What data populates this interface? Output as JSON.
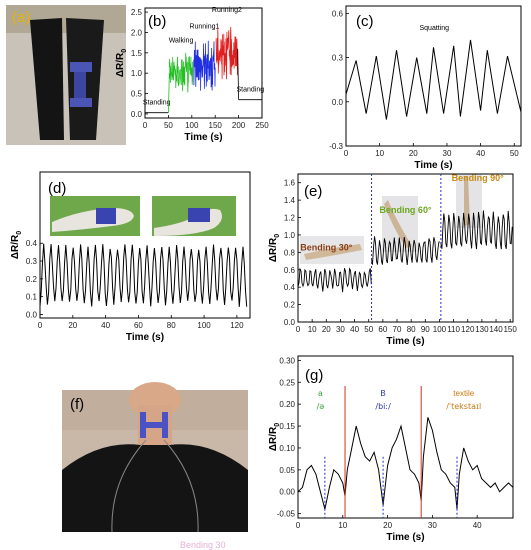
{
  "panel_labels": {
    "a": "(a)",
    "b": "(b)",
    "c": "(c)",
    "d": "(d)",
    "e": "(e)",
    "f": "(f)",
    "g": "(g)"
  },
  "axis_labels": {
    "x": "Time (s)",
    "y": "ΔR/R",
    "y_sub": "0"
  },
  "photo_caption": "Bending 30",
  "chart_data": [
    {
      "id": "b",
      "type": "line",
      "xlabel": "Time (s)",
      "ylabel": "ΔR/R0",
      "xlim": [
        0,
        250
      ],
      "ylim": [
        -0.1,
        2.6
      ],
      "xticks": [
        "0",
        "50",
        "100",
        "150",
        "200",
        "250"
      ],
      "yticks": [
        "0.0",
        "0.5",
        "1.0",
        "1.5",
        "2.0",
        "2.5"
      ],
      "segments": [
        {
          "name": "Standing",
          "x": [
            0,
            50
          ],
          "color": "#000000",
          "base": 0.03,
          "amp": 0.0
        },
        {
          "name": "Walking",
          "x": [
            52,
            102
          ],
          "color": "#20c020",
          "base": 1.0,
          "amp": 0.5
        },
        {
          "name": "Running1",
          "x": [
            104,
            150
          ],
          "color": "#2030e0",
          "base": 1.2,
          "amp": 0.65
        },
        {
          "name": "Running2",
          "x": [
            152,
            198
          ],
          "color": "#e02020",
          "base": 1.55,
          "amp": 0.7
        },
        {
          "name": "Standing",
          "x": [
            200,
            250
          ],
          "color": "#000000",
          "base": 0.35,
          "amp": 0.0
        }
      ]
    },
    {
      "id": "c",
      "type": "line",
      "xlabel": "Time (s)",
      "ylabel": "",
      "title": "Squatting",
      "xlim": [
        0,
        52
      ],
      "ylim": [
        -0.3,
        0.65
      ],
      "xticks": [
        "0",
        "10",
        "20",
        "30",
        "40",
        "50"
      ],
      "yticks": [
        "-0.3",
        "0.0",
        "0.3",
        "0.6"
      ],
      "peaks": [
        [
          3,
          0.28
        ],
        [
          9,
          0.31
        ],
        [
          15,
          0.35
        ],
        [
          21,
          0.3
        ],
        [
          26,
          0.37
        ],
        [
          32,
          0.38
        ],
        [
          37,
          0.42
        ],
        [
          42,
          0.35
        ],
        [
          48,
          0.31
        ]
      ],
      "troughs": [
        [
          0,
          0.05
        ],
        [
          6,
          -0.08
        ],
        [
          12,
          -0.12
        ],
        [
          18,
          -0.1
        ],
        [
          24,
          -0.08
        ],
        [
          29,
          -0.08
        ],
        [
          34,
          -0.1
        ],
        [
          40,
          -0.06
        ],
        [
          45,
          -0.08
        ],
        [
          52,
          -0.07
        ]
      ]
    },
    {
      "id": "d",
      "type": "line",
      "xlabel": "Time (s)",
      "ylabel": "ΔR/R0",
      "xlim": [
        0,
        128
      ],
      "ylim": [
        -0.02,
        0.8
      ],
      "xticks": [
        "0",
        "20",
        "40",
        "60",
        "80",
        "100",
        "120"
      ],
      "yticks": [
        "0.0",
        "0.1",
        "0.2",
        "0.3",
        "0.4"
      ],
      "period": 4.5,
      "low": 0.06,
      "high": 0.38
    },
    {
      "id": "e",
      "type": "line",
      "xlabel": "Time (s)",
      "ylabel": "ΔR/R0",
      "xlim": [
        0,
        152
      ],
      "ylim": [
        0.0,
        1.7
      ],
      "xticks": [
        "0",
        "10",
        "20",
        "30",
        "40",
        "50",
        "60",
        "70",
        "80",
        "90",
        "100",
        "110",
        "120",
        "130",
        "140",
        "150"
      ],
      "yticks": [
        "0.0",
        "0.2",
        "0.4",
        "0.6",
        "0.8",
        "1.0",
        "1.2",
        "1.4",
        "1.6"
      ],
      "boundaries": [
        52,
        101
      ],
      "segments": [
        {
          "name": "Bending 30°",
          "x": [
            0,
            52
          ],
          "low": 0.38,
          "high": 0.6,
          "color": "#8a3d12"
        },
        {
          "name": "Bending 60°",
          "x": [
            52,
            101
          ],
          "low": 0.68,
          "high": 0.95,
          "color": "#6aa61e"
        },
        {
          "name": "Bending 90°",
          "x": [
            101,
            152
          ],
          "low": 0.85,
          "high": 1.25,
          "color": "#c88a10"
        }
      ]
    },
    {
      "id": "g",
      "type": "line",
      "xlabel": "Time (s)",
      "ylabel": "ΔR/R0",
      "xlim": [
        0,
        48
      ],
      "ylim": [
        -0.06,
        0.31
      ],
      "xticks": [
        "0",
        "10",
        "20",
        "30",
        "40"
      ],
      "yticks": [
        "-0.05",
        "0.00",
        "0.05",
        "0.10",
        "0.15",
        "0.20",
        "0.25",
        "0.30"
      ],
      "words": [
        {
          "word": "a",
          "ipa": "/ə",
          "color": "#2f9e2f",
          "x": 11
        },
        {
          "word": "B",
          "ipa": "/biː/",
          "color": "#2833a8",
          "x": 19
        },
        {
          "word": "textile",
          "ipa": "/ˈtekstaɪl",
          "color": "#c47a10",
          "x": 36
        }
      ],
      "points": [
        [
          0,
          0.0
        ],
        [
          1,
          0.01
        ],
        [
          2,
          0.05
        ],
        [
          3,
          0.06
        ],
        [
          4,
          0.04
        ],
        [
          5,
          0.0
        ],
        [
          6,
          -0.04
        ],
        [
          7,
          0.01
        ],
        [
          8,
          0.05
        ],
        [
          9,
          0.04
        ],
        [
          10,
          0.02
        ],
        [
          10.5,
          -0.01
        ],
        [
          11,
          0.05
        ],
        [
          12,
          0.1
        ],
        [
          13,
          0.15
        ],
        [
          14,
          0.11
        ],
        [
          15,
          0.08
        ],
        [
          16,
          0.07
        ],
        [
          17,
          0.09
        ],
        [
          18,
          0.05
        ],
        [
          19,
          -0.03
        ],
        [
          20,
          0.06
        ],
        [
          21,
          0.1
        ],
        [
          22,
          0.12
        ],
        [
          23,
          0.15
        ],
        [
          24,
          0.1
        ],
        [
          25,
          0.05
        ],
        [
          26,
          0.04
        ],
        [
          27,
          0.02
        ],
        [
          27.5,
          -0.02
        ],
        [
          28,
          0.08
        ],
        [
          29,
          0.17
        ],
        [
          30,
          0.14
        ],
        [
          31,
          0.09
        ],
        [
          32,
          0.05
        ],
        [
          33,
          0.04
        ],
        [
          34,
          0.02
        ],
        [
          35,
          0.01
        ],
        [
          35.5,
          -0.04
        ],
        [
          36,
          0.04
        ],
        [
          37,
          0.1
        ],
        [
          38,
          0.07
        ],
        [
          39,
          0.05
        ],
        [
          40,
          0.06
        ],
        [
          41,
          0.03
        ],
        [
          42,
          0.02
        ],
        [
          43,
          0.01
        ],
        [
          44,
          0.02
        ],
        [
          45,
          0.0
        ],
        [
          46,
          0.01
        ],
        [
          47,
          0.02
        ],
        [
          48,
          0.01
        ]
      ]
    }
  ]
}
